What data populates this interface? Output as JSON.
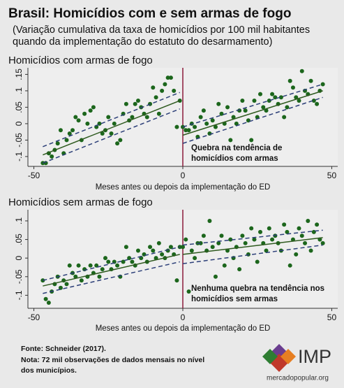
{
  "title": "Brasil: Homicídios com e sem armas de fogo",
  "subtitle": [
    "(Variação cumulativa da taxa de homicídios por 100 mil habitantes",
    "quando da implementação do estatuto do desarmamento)"
  ],
  "source": "Fonte: Schneider (2017).",
  "note": [
    "Nota: 72 mil observações de dados mensais no nível",
    "dos municípios."
  ],
  "logo": {
    "name": "IMP",
    "url": "mercadopopular.org"
  },
  "chart_data": [
    {
      "type": "scatter",
      "title": "Homicídios com armas de fogo",
      "xlabel": "Meses antes ou depois da implementação do ED",
      "annotation": [
        "Quebra na tendência de",
        "homicídios com armas"
      ],
      "color": "#1c661c",
      "x": [
        -47,
        -46,
        -45,
        -44,
        -43,
        -42,
        -41,
        -40,
        -39,
        -38,
        -37,
        -36,
        -35,
        -34,
        -33,
        -32,
        -31,
        -30,
        -29,
        -28,
        -27,
        -26,
        -25,
        -24,
        -23,
        -22,
        -21,
        -20,
        -19,
        -18,
        -17,
        -16,
        -15,
        -14,
        -13,
        -12,
        -11,
        -10,
        -9,
        -8,
        -7,
        -6,
        -5,
        -4,
        -3,
        -2,
        -1,
        0,
        1,
        2,
        3,
        4,
        5,
        6,
        7,
        8,
        9,
        10,
        11,
        12,
        13,
        14,
        15,
        16,
        17,
        18,
        19,
        20,
        21,
        22,
        23,
        24,
        25,
        26,
        27,
        28,
        29,
        30,
        31,
        32,
        33,
        34,
        35,
        36,
        37,
        38,
        39,
        40,
        41,
        42,
        43,
        44,
        45,
        46,
        47
      ],
      "values": [
        -0.12,
        -0.12,
        -0.09,
        -0.1,
        -0.08,
        -0.06,
        -0.02,
        -0.09,
        -0.05,
        -0.03,
        -0.02,
        0.02,
        0.01,
        -0.05,
        0.03,
        0.0,
        0.04,
        0.05,
        -0.01,
        0.0,
        -0.03,
        -0.02,
        0.02,
        -0.03,
        0.0,
        -0.06,
        -0.05,
        0.03,
        0.06,
        0.01,
        0.02,
        0.06,
        0.07,
        0.05,
        0.03,
        0.02,
        0.06,
        0.11,
        0.08,
        0.03,
        0.1,
        0.12,
        0.14,
        0.14,
        0.1,
        -0.01,
        0.07,
        -0.01,
        -0.02,
        -0.02,
        0.0,
        -0.01,
        -0.04,
        0.02,
        0.04,
        0.0,
        -0.03,
        0.01,
        -0.01,
        0.06,
        0.03,
        0.0,
        0.05,
        -0.05,
        0.02,
        0.0,
        0.04,
        0.07,
        0.04,
        0.01,
        -0.05,
        0.07,
        0.02,
        0.09,
        0.05,
        0.04,
        0.07,
        0.09,
        0.08,
        0.06,
        0.08,
        0.02,
        0.05,
        0.13,
        0.11,
        0.08,
        0.07,
        0.16,
        0.1,
        0.09,
        0.13,
        0.07,
        0.06,
        0.1,
        0.12
      ],
      "fits": [
        {
          "x": [
            -47,
            -1
          ],
          "values": [
            -0.095,
            0.07
          ],
          "color": "#2e5a1f",
          "dashed": false
        },
        {
          "x": [
            -47,
            -1
          ],
          "values": [
            -0.07,
            0.095
          ],
          "color": "#2c3f78",
          "dashed": true
        },
        {
          "x": [
            -47,
            -1
          ],
          "values": [
            -0.12,
            0.045
          ],
          "color": "#2c3f78",
          "dashed": true
        },
        {
          "x": [
            0,
            47
          ],
          "values": [
            -0.035,
            0.1
          ],
          "color": "#2e5a1f",
          "dashed": false
        },
        {
          "x": [
            0,
            47
          ],
          "values": [
            -0.01,
            0.12
          ],
          "color": "#2c3f78",
          "dashed": true
        },
        {
          "x": [
            0,
            47
          ],
          "values": [
            -0.06,
            0.08
          ],
          "color": "#2c3f78",
          "dashed": true
        }
      ],
      "vline": 0,
      "vline_color": "#8b1a3a",
      "xlim": [
        -52,
        52
      ],
      "ylim": [
        -0.13,
        0.17
      ],
      "xticks": [
        -50,
        0,
        50
      ],
      "yticks": [
        {
          "value": -0.1,
          "label": "-.1"
        },
        {
          "value": -0.05,
          "label": "-.05"
        },
        0,
        {
          "value": 0.05,
          "label": ".05"
        },
        {
          "value": 0.1,
          "label": ".1"
        },
        {
          "value": 0.15,
          "label": ".15"
        }
      ]
    },
    {
      "type": "scatter",
      "title": "Homicídios sem armas de fogo",
      "xlabel": "Meses antes ou depois da implementação do ED",
      "annotation": [
        "Nenhuma quebra na tendência nos",
        "homicídios sem armas"
      ],
      "color": "#1c661c",
      "x": [
        -47,
        -46,
        -45,
        -44,
        -43,
        -42,
        -41,
        -40,
        -39,
        -38,
        -37,
        -36,
        -35,
        -34,
        -33,
        -32,
        -31,
        -30,
        -29,
        -28,
        -27,
        -26,
        -25,
        -24,
        -23,
        -22,
        -21,
        -20,
        -19,
        -18,
        -17,
        -16,
        -15,
        -14,
        -13,
        -12,
        -11,
        -10,
        -9,
        -8,
        -7,
        -6,
        -5,
        -4,
        -3,
        -2,
        -1,
        0,
        1,
        2,
        3,
        4,
        5,
        6,
        7,
        8,
        9,
        10,
        11,
        12,
        13,
        14,
        15,
        16,
        17,
        18,
        19,
        20,
        21,
        22,
        23,
        24,
        25,
        26,
        27,
        28,
        29,
        30,
        31,
        32,
        33,
        34,
        35,
        36,
        37,
        38,
        39,
        40,
        41,
        42,
        43,
        44,
        45,
        46,
        47
      ],
      "values": [
        -0.06,
        -0.11,
        -0.12,
        -0.09,
        -0.07,
        -0.05,
        -0.08,
        -0.06,
        -0.07,
        -0.02,
        -0.04,
        -0.05,
        -0.02,
        -0.06,
        -0.03,
        -0.05,
        -0.02,
        -0.04,
        -0.02,
        -0.05,
        -0.03,
        0.0,
        -0.01,
        -0.03,
        -0.01,
        -0.02,
        -0.05,
        -0.01,
        0.03,
        0.0,
        -0.01,
        -0.02,
        0.02,
        0.0,
        0.01,
        -0.01,
        0.03,
        0.02,
        0.0,
        0.04,
        0.01,
        0.0,
        0.02,
        0.03,
        0.01,
        -0.06,
        0.03,
        0.03,
        0.05,
        -0.09,
        0.02,
        0.0,
        0.04,
        0.04,
        0.06,
        0.02,
        0.1,
        0.03,
        -0.05,
        0.04,
        0.06,
        -0.02,
        0.02,
        0.05,
        0.0,
        0.03,
        -0.03,
        0.06,
        0.04,
        0.01,
        0.08,
        0.05,
        -0.01,
        0.07,
        0.04,
        0.02,
        0.08,
        0.05,
        0.06,
        0.04,
        0.02,
        0.09,
        0.07,
        -0.02,
        0.05,
        0.01,
        0.08,
        0.06,
        0.04,
        0.1,
        0.02,
        0.07,
        0.09,
        0.05,
        0.04
      ],
      "fits": [
        {
          "x": [
            -47,
            -1
          ],
          "values": [
            -0.075,
            0.01
          ],
          "color": "#2e5a1f",
          "dashed": false
        },
        {
          "x": [
            -47,
            -1
          ],
          "values": [
            -0.06,
            0.03
          ],
          "color": "#2c3f78",
          "dashed": true
        },
        {
          "x": [
            -47,
            -1
          ],
          "values": [
            -0.095,
            -0.01
          ],
          "color": "#2c3f78",
          "dashed": true
        },
        {
          "x": [
            0,
            47
          ],
          "values": [
            0.01,
            0.055
          ],
          "color": "#2e5a1f",
          "dashed": false
        },
        {
          "x": [
            0,
            47
          ],
          "values": [
            0.035,
            0.075
          ],
          "color": "#2c3f78",
          "dashed": true
        },
        {
          "x": [
            0,
            47
          ],
          "values": [
            -0.015,
            0.035
          ],
          "color": "#2c3f78",
          "dashed": true
        }
      ],
      "vline": 0,
      "vline_color": "#8b1a3a",
      "xlim": [
        -52,
        52
      ],
      "ylim": [
        -0.135,
        0.13
      ],
      "xticks": [
        -50,
        0,
        50
      ],
      "yticks": [
        {
          "value": -0.1,
          "label": "-.1"
        },
        {
          "value": -0.05,
          "label": "-.05"
        },
        0,
        {
          "value": 0.05,
          "label": ".05"
        },
        {
          "value": 0.1,
          "label": ".1"
        }
      ]
    }
  ]
}
